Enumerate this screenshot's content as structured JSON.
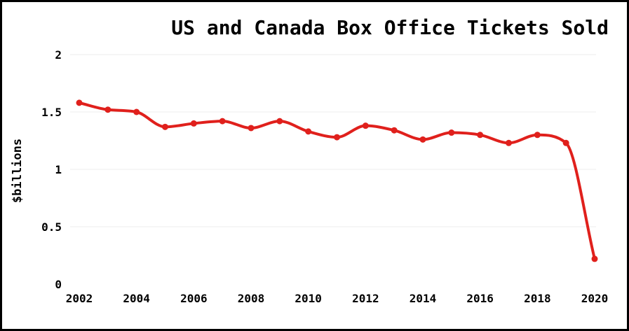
{
  "chart_data": {
    "type": "line",
    "title": "US and Canada Box Office Tickets Sold",
    "xlabel": "",
    "ylabel": "$billions",
    "x": [
      2002,
      2003,
      2004,
      2005,
      2006,
      2007,
      2008,
      2009,
      2010,
      2011,
      2012,
      2013,
      2014,
      2015,
      2016,
      2017,
      2018,
      2019,
      2020
    ],
    "series": [
      {
        "values": [
          1.58,
          1.52,
          1.5,
          1.37,
          1.4,
          1.42,
          1.36,
          1.42,
          1.33,
          1.28,
          1.38,
          1.34,
          1.26,
          1.32,
          1.3,
          1.23,
          1.3,
          1.23,
          0.22
        ]
      }
    ],
    "ylim": [
      0,
      2
    ],
    "yticks": [
      "0",
      "0.5",
      "1",
      "1.5",
      "2"
    ],
    "xticks": [
      "2002",
      "2004",
      "2006",
      "2008",
      "2010",
      "2012",
      "2014",
      "2016",
      "2018",
      "2020"
    ],
    "grid": "horizontal",
    "legend": "none",
    "colors": {
      "line": "#e0201c",
      "grid": "#eeeeee"
    }
  }
}
